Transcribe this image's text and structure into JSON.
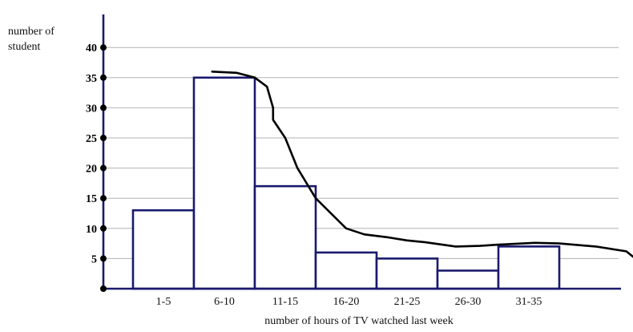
{
  "chart_data": {
    "type": "bar",
    "categories": [
      "1-5",
      "6-10",
      "11-15",
      "16-20",
      "21-25",
      "26-30",
      "31-35"
    ],
    "values": [
      13,
      35,
      17,
      6,
      5,
      3,
      7
    ],
    "title": "",
    "xlabel": "number of hours of TV watched last week",
    "ylabel": "number of student",
    "ylim": [
      0,
      40
    ],
    "yticks": [
      5,
      10,
      15,
      20,
      25,
      30,
      35,
      40
    ],
    "grid": true,
    "bar_color": "#1a1a6e",
    "curve_color": "#000000",
    "freehand_curve": {
      "x": [
        1.3,
        1.7,
        2.0,
        2.2,
        2.3,
        2.3,
        2.5,
        2.7,
        3.0,
        3.5,
        3.8,
        4.2,
        4.5,
        4.8,
        5.3,
        5.7,
        6.0,
        6.6,
        7.0,
        7.6,
        8.1,
        8.3
      ],
      "y": [
        36,
        35.8,
        35,
        33.5,
        30,
        28,
        25,
        20,
        15,
        10,
        9,
        8.5,
        8,
        7.7,
        7,
        7.1,
        7.3,
        7.6,
        7.5,
        7.0,
        6.2,
        4.6
      ]
    }
  },
  "labels": {
    "ylabel_line1": "number of",
    "ylabel_line2": "student",
    "xlabel": "number of hours of TV watched last week"
  }
}
